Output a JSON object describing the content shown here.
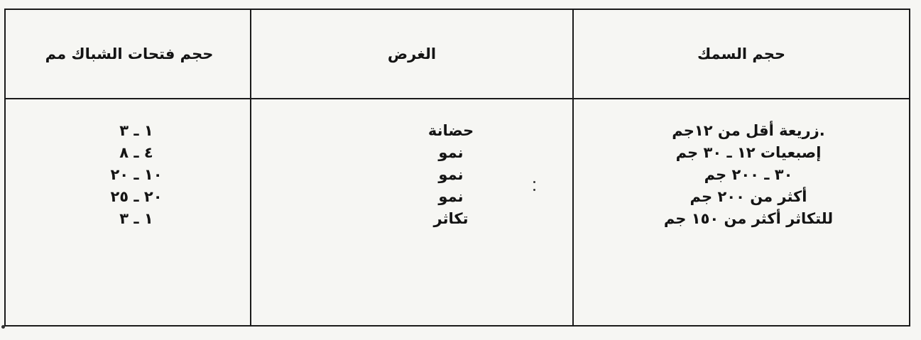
{
  "table": {
    "headers": [
      "حجم السمك",
      "الغرض",
      "حجم فتحات الشباك مم"
    ],
    "fish_size": [
      ".زريعة أقل من ١٢جم",
      "إصبعيات ١٢ ـ ٣٠ جم",
      "٣٠ ـ ٢٠٠ جم",
      "أكثر من ٢٠٠ جم",
      "للتكاثر أكثر من ١٥٠ جم"
    ],
    "purpose": [
      "حضانة",
      "نمو",
      "نمو",
      "نمو",
      "تكاثر"
    ],
    "mesh_size": [
      "١ ـ ٣",
      "٤ ـ ٨",
      "١٠ ـ ٢٠",
      "٢٠ ـ ٢٥",
      "١ ـ ٣"
    ]
  }
}
